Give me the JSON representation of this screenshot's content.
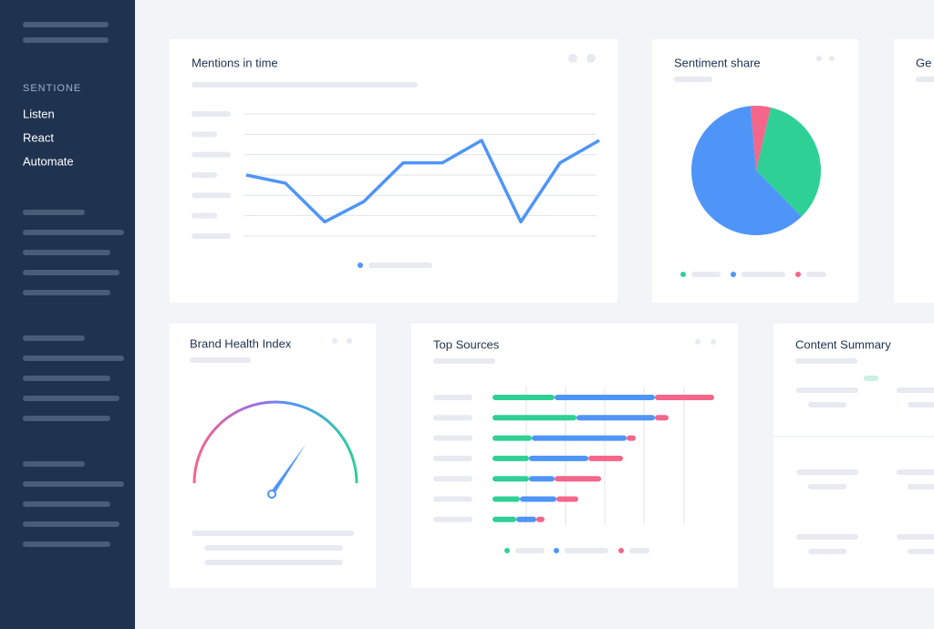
{
  "sidebar": {
    "brand": "SENTIONE",
    "items": [
      "Listen",
      "React",
      "Automate"
    ]
  },
  "panels": {
    "partial_title": "Ge",
    "content_summary": "Content Summary"
  },
  "chart_data": [
    {
      "type": "line",
      "title": "Mentions in time",
      "categories": [
        null,
        null,
        null,
        null,
        null,
        null,
        null,
        null,
        null,
        null
      ],
      "series": [
        {
          "color": "#4f95f7",
          "values": [
            3.0,
            2.6,
            0.7,
            1.7,
            3.6,
            3.6,
            4.7,
            0.7,
            3.6,
            4.7
          ]
        }
      ],
      "ylim": [
        0,
        6
      ],
      "yticks": [
        0,
        1,
        2,
        3,
        4,
        5,
        6
      ],
      "grid": true
    },
    {
      "type": "pie",
      "title": "Sentiment share",
      "categories": [
        null,
        null,
        null
      ],
      "values": [
        34,
        61,
        5
      ],
      "colors": [
        "#2fd095",
        "#4f95f7",
        "#f4668a"
      ]
    },
    {
      "type": "gauge",
      "title": "Brand Health Index",
      "value": 69,
      "ylim": [
        0,
        100
      ]
    },
    {
      "type": "stacked_hbar",
      "title": "Top Sources",
      "categories": [
        null,
        null,
        null,
        null,
        null,
        null,
        null
      ],
      "series": [
        {
          "color": "#2fd095",
          "values": [
            68,
            92,
            43,
            40,
            40,
            30,
            26
          ]
        },
        {
          "color": "#4f95f7",
          "values": [
            110,
            86,
            104,
            65,
            28,
            40,
            22
          ]
        },
        {
          "color": "#f4668a",
          "values": [
            65,
            15,
            10,
            38,
            51,
            24,
            9
          ]
        }
      ],
      "xlim": [
        0,
        250
      ],
      "xticks": [
        37,
        80,
        123,
        166,
        210
      ],
      "grid": true
    }
  ]
}
